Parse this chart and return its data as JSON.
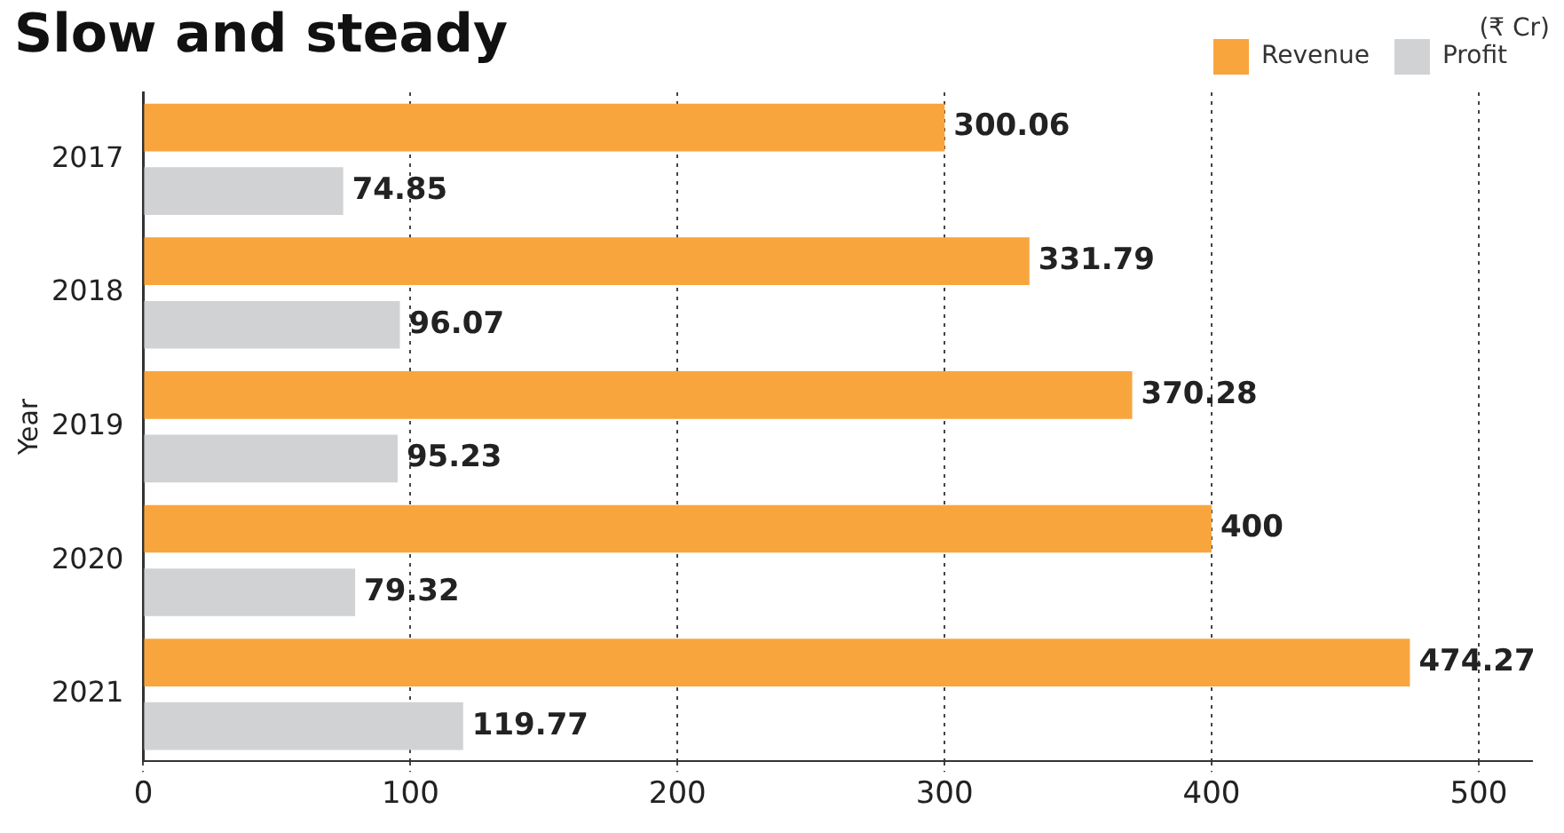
{
  "chart_data": {
    "type": "bar",
    "orientation": "horizontal",
    "title": "Slow and steady",
    "ylabel": "Year",
    "annotations": [
      "(₹ Cr)"
    ],
    "categories": [
      "2017",
      "2018",
      "2019",
      "2020",
      "2021"
    ],
    "series": [
      {
        "name": "Revenue",
        "color": "#f9a53e",
        "values": [
          300.06,
          331.79,
          370.28,
          400,
          474.27
        ]
      },
      {
        "name": "Profit",
        "color": "#d1d2d4",
        "values": [
          74.85,
          96.07,
          95.23,
          79.32,
          119.77
        ]
      }
    ],
    "xlim": [
      0,
      520
    ],
    "xticks": [
      0,
      100,
      200,
      300,
      400,
      500
    ],
    "grid": "x",
    "legend": "top right",
    "data_labels": true
  }
}
